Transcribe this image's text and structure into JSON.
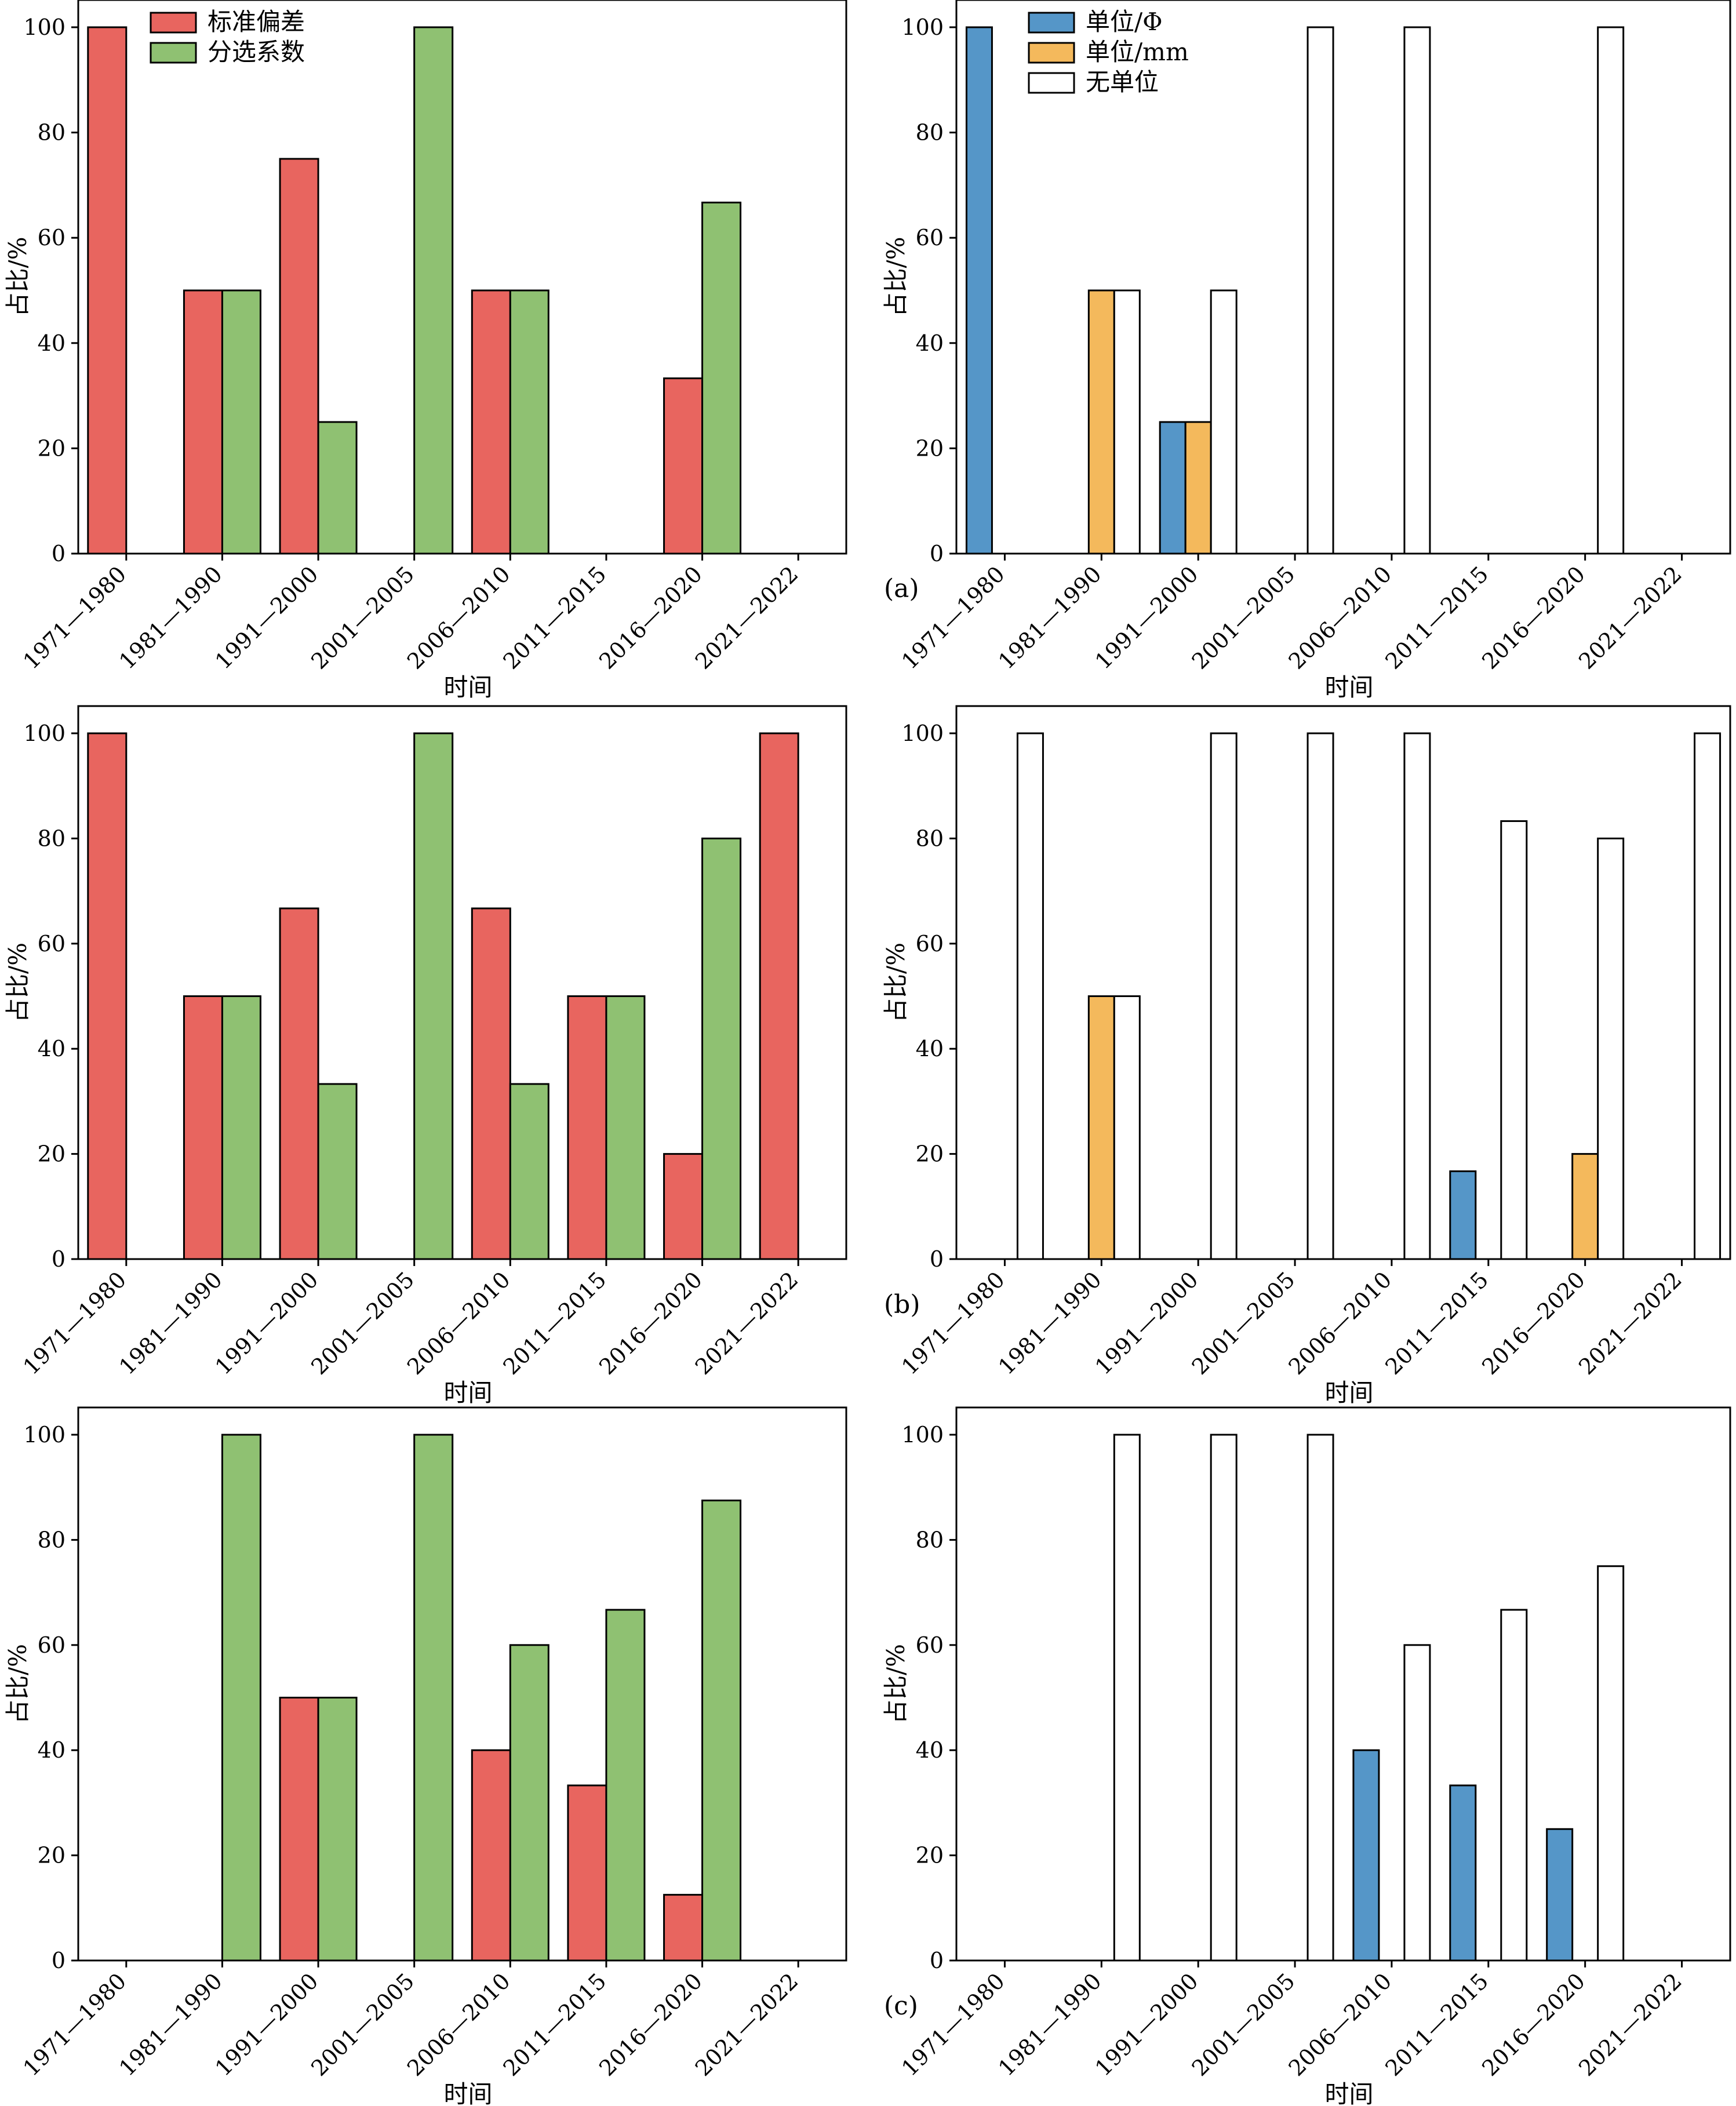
{
  "figure": {
    "colors": {
      "std": "#e8655f",
      "sort": "#8fc172",
      "phi": "#5596c8",
      "mm": "#f4b95c",
      "none": "#ffffff"
    },
    "legend_left": [
      "标准偏差",
      "分选系数"
    ],
    "legend_right": [
      "单位/Φ",
      "单位/mm",
      "无单位"
    ],
    "panel_labels": [
      "(a)",
      "(b)",
      "(c)"
    ]
  },
  "chart_data": [
    {
      "id": "a-left",
      "type": "bar",
      "ylabel": "占比/%",
      "xlabel": "时间",
      "ylim": [
        0,
        100
      ],
      "yticks": [
        0,
        20,
        40,
        60,
        80,
        100
      ],
      "categories": [
        "1971—1980",
        "1981—1990",
        "1991—2000",
        "2001—2005",
        "2006—2010",
        "2011—2015",
        "2016—2020",
        "2021—2022"
      ],
      "series": [
        {
          "name": "标准偏差",
          "color_key": "std",
          "values": [
            100,
            50,
            75,
            0,
            50,
            0,
            33.3,
            0
          ]
        },
        {
          "name": "分选系数",
          "color_key": "sort",
          "values": [
            0,
            50,
            25,
            100,
            50,
            0,
            66.7,
            0
          ]
        }
      ],
      "legend": "top-left"
    },
    {
      "id": "a-right",
      "type": "bar",
      "ylabel": "占比/%",
      "xlabel": "时间",
      "ylim": [
        0,
        100
      ],
      "yticks": [
        0,
        20,
        40,
        60,
        80,
        100
      ],
      "categories": [
        "1971—1980",
        "1981—1990",
        "1991—2000",
        "2001—2005",
        "2006—2010",
        "2011—2015",
        "2016—2020",
        "2021—2022"
      ],
      "series": [
        {
          "name": "单位/Φ",
          "color_key": "phi",
          "values": [
            100,
            0,
            25,
            0,
            0,
            0,
            0,
            0
          ]
        },
        {
          "name": "单位/mm",
          "color_key": "mm",
          "values": [
            0,
            50,
            25,
            0,
            0,
            0,
            0,
            0
          ]
        },
        {
          "name": "无单位",
          "color_key": "none",
          "values": [
            0,
            50,
            50,
            100,
            100,
            0,
            100,
            0
          ]
        }
      ],
      "legend": "top-left"
    },
    {
      "id": "b-left",
      "type": "bar",
      "ylabel": "占比/%",
      "xlabel": "时间",
      "ylim": [
        0,
        100
      ],
      "yticks": [
        0,
        20,
        40,
        60,
        80,
        100
      ],
      "categories": [
        "1971—1980",
        "1981—1990",
        "1991—2000",
        "2001—2005",
        "2006—2010",
        "2011—2015",
        "2016—2020",
        "2021—2022"
      ],
      "series": [
        {
          "name": "标准偏差",
          "color_key": "std",
          "values": [
            100,
            50,
            66.7,
            0,
            66.7,
            50,
            20,
            100
          ]
        },
        {
          "name": "分选系数",
          "color_key": "sort",
          "values": [
            0,
            50,
            33.3,
            100,
            33.3,
            50,
            80,
            0
          ]
        }
      ]
    },
    {
      "id": "b-right",
      "type": "bar",
      "ylabel": "占比/%",
      "xlabel": "时间",
      "ylim": [
        0,
        100
      ],
      "yticks": [
        0,
        20,
        40,
        60,
        80,
        100
      ],
      "categories": [
        "1971—1980",
        "1981—1990",
        "1991—2000",
        "2001—2005",
        "2006—2010",
        "2011—2015",
        "2016—2020",
        "2021—2022"
      ],
      "series": [
        {
          "name": "单位/Φ",
          "color_key": "phi",
          "values": [
            0,
            0,
            0,
            0,
            0,
            16.7,
            0,
            0
          ]
        },
        {
          "name": "单位/mm",
          "color_key": "mm",
          "values": [
            0,
            50,
            0,
            0,
            0,
            0,
            20,
            0
          ]
        },
        {
          "name": "无单位",
          "color_key": "none",
          "values": [
            100,
            50,
            100,
            100,
            100,
            83.3,
            80,
            100
          ]
        }
      ]
    },
    {
      "id": "c-left",
      "type": "bar",
      "ylabel": "占比/%",
      "xlabel": "时间",
      "ylim": [
        0,
        105
      ],
      "yticks": [
        0,
        20,
        40,
        60,
        80,
        100
      ],
      "categories": [
        "1971—1980",
        "1981—1990",
        "1991—2000",
        "2001—2005",
        "2006—2010",
        "2011—2015",
        "2016—2020",
        "2021—2022"
      ],
      "series": [
        {
          "name": "标准偏差",
          "color_key": "std",
          "values": [
            0,
            0,
            50,
            0,
            40,
            33.3,
            12.5,
            0
          ]
        },
        {
          "name": "分选系数",
          "color_key": "sort",
          "values": [
            0,
            100,
            50,
            100,
            60,
            66.7,
            87.5,
            0
          ]
        }
      ]
    },
    {
      "id": "c-right",
      "type": "bar",
      "ylabel": "占比/%",
      "xlabel": "时间",
      "ylim": [
        0,
        105
      ],
      "yticks": [
        0,
        20,
        40,
        60,
        80,
        100
      ],
      "categories": [
        "1971—1980",
        "1981—1990",
        "1991—2000",
        "2001—2005",
        "2006—2010",
        "2011—2015",
        "2016—2020",
        "2021—2022"
      ],
      "series": [
        {
          "name": "单位/Φ",
          "color_key": "phi",
          "values": [
            0,
            0,
            0,
            0,
            40,
            33.3,
            25,
            0
          ]
        },
        {
          "name": "单位/mm",
          "color_key": "mm",
          "values": [
            0,
            0,
            0,
            0,
            0,
            0,
            0,
            0
          ]
        },
        {
          "name": "无单位",
          "color_key": "none",
          "values": [
            0,
            100,
            100,
            100,
            60,
            66.7,
            75,
            0
          ]
        }
      ]
    }
  ]
}
